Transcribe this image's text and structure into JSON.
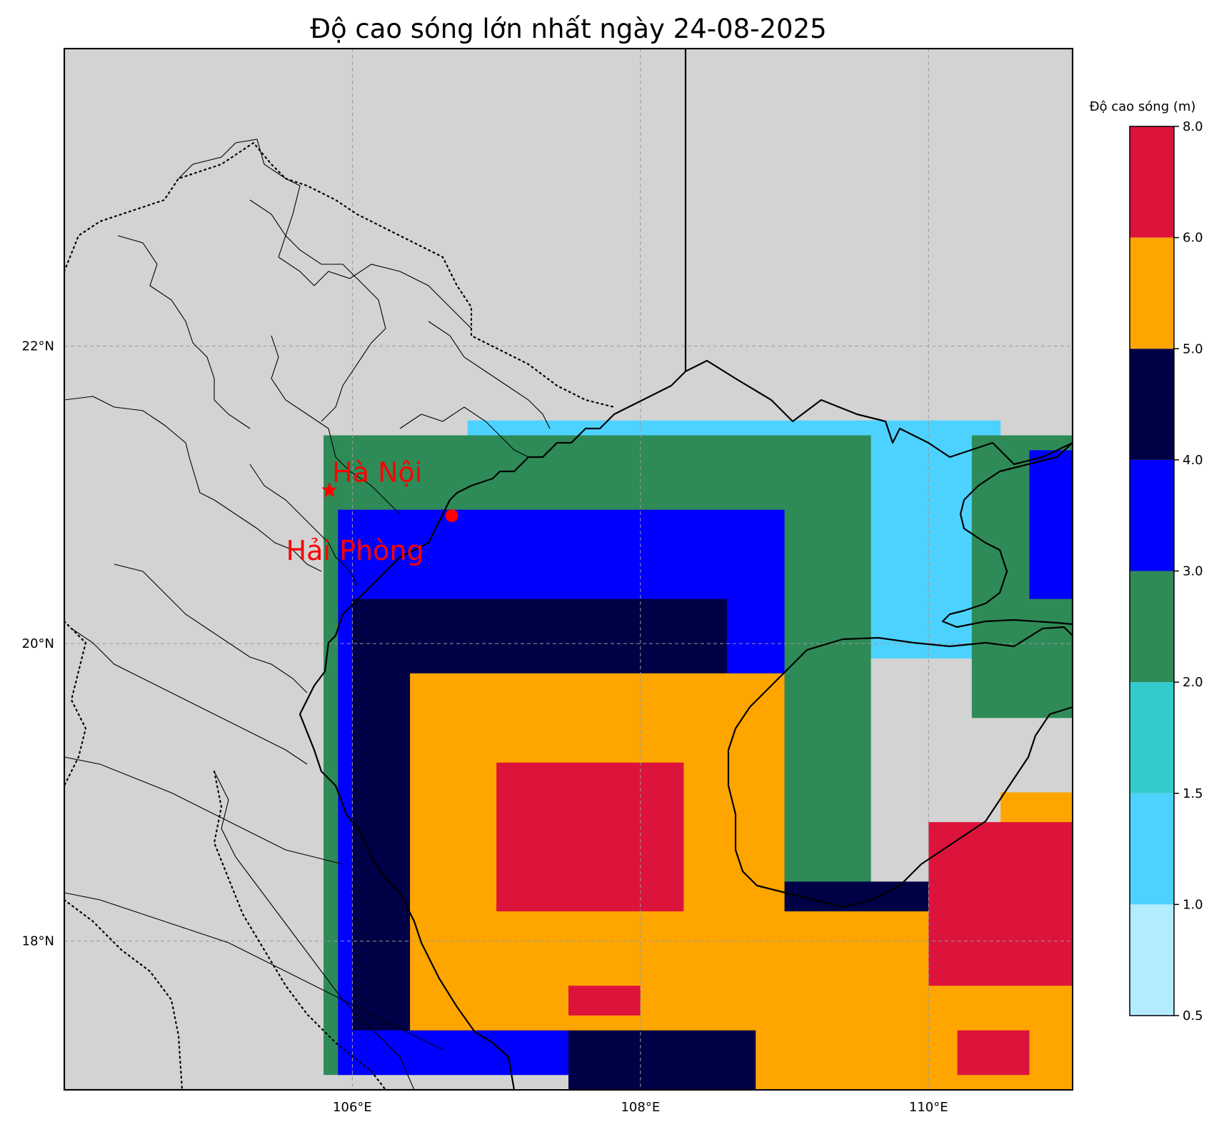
{
  "title": "Độ cao sóng lớn nhất ngày 24-08-2025",
  "axes": {
    "lon_range": [
      104.0,
      111.0
    ],
    "lat_range": [
      17.0,
      24.0
    ],
    "x_ticks": [
      {
        "value": 106,
        "label": "106°E"
      },
      {
        "value": 108,
        "label": "108°E"
      },
      {
        "value": 110,
        "label": "110°E"
      }
    ],
    "y_ticks": [
      {
        "value": 22,
        "label": "22°N"
      },
      {
        "value": 20,
        "label": "20°N"
      },
      {
        "value": 18,
        "label": "18°N"
      }
    ],
    "grid": true,
    "land_color": "#d3d3d3"
  },
  "colorbar": {
    "title": "Độ cao sóng (m)",
    "position": "right",
    "bounds": [
      "0.5",
      "1.0",
      "1.5",
      "2.0",
      "3.0",
      "4.0",
      "5.0",
      "6.0",
      "8.0"
    ],
    "colors": [
      "#b3ecff",
      "#4dd2ff",
      "#33cccc",
      "#2e8b57",
      "#0000ff",
      "#000046",
      "#ffa500",
      "#dc143c"
    ]
  },
  "markers": [
    {
      "name": "Hà Nội",
      "lon": 105.84,
      "lat": 21.03,
      "symbol": "star",
      "color": "#ff0000"
    },
    {
      "name": "Hải Phòng",
      "lon": 106.69,
      "lat": 20.86,
      "symbol": "dot",
      "color": "#ff0000"
    }
  ],
  "chart_data": {
    "type": "heatmap",
    "title": "Độ cao sóng lớn nhất ngày 24-08-2025",
    "x_axis": "longitude (°E)",
    "y_axis": "latitude (°N)",
    "xlim": [
      104.0,
      111.0
    ],
    "ylim": [
      17.0,
      24.0
    ],
    "value_units": "m",
    "max_wave_height_zones": [
      {
        "range": "6.0-8.0",
        "areas": [
          {
            "lon": [
              107.0,
              108.3
            ],
            "lat": [
              18.2,
              19.2
            ]
          },
          {
            "lon": [
              107.5,
              108.0
            ],
            "lat": [
              17.5,
              17.7
            ]
          },
          {
            "lon": [
              110.0,
              111.0
            ],
            "lat": [
              17.7,
              18.8
            ]
          },
          {
            "lon": [
              110.2,
              110.7
            ],
            "lat": [
              17.1,
              17.4
            ]
          }
        ]
      },
      {
        "range": "5.0-6.0",
        "areas": [
          {
            "lon": [
              106.4,
              109.0
            ],
            "lat": [
              17.4,
              19.8
            ]
          },
          {
            "lon": [
              108.8,
              111.0
            ],
            "lat": [
              17.0,
              18.2
            ]
          },
          {
            "lon": [
              110.5,
              111.0
            ],
            "lat": [
              18.5,
              19.0
            ]
          }
        ]
      },
      {
        "range": "4.0-5.0",
        "areas": [
          {
            "lon": [
              106.0,
              108.6
            ],
            "lat": [
              17.4,
              20.3
            ]
          },
          {
            "lon": [
              107.5,
              110.0
            ],
            "lat": [
              17.0,
              18.4
            ]
          }
        ]
      },
      {
        "range": "3.0-4.0",
        "areas": [
          {
            "lon": [
              105.9,
              109.0
            ],
            "lat": [
              17.1,
              20.9
            ]
          },
          {
            "lon": [
              110.7,
              111.0
            ],
            "lat": [
              20.3,
              21.3
            ]
          }
        ]
      },
      {
        "range": "2.0-3.0",
        "areas": [
          {
            "lon": [
              105.8,
              109.6
            ],
            "lat": [
              17.1,
              21.4
            ]
          },
          {
            "lon": [
              110.3,
              111.0
            ],
            "lat": [
              19.5,
              21.4
            ]
          }
        ]
      },
      {
        "range": "1.0-2.0",
        "areas": [
          {
            "lon": [
              106.8,
              110.5
            ],
            "lat": [
              19.9,
              21.5
            ]
          },
          {
            "lon": [
              110.2,
              110.9
            ],
            "lat": [
              20.7,
              21.3
            ]
          }
        ]
      }
    ]
  }
}
